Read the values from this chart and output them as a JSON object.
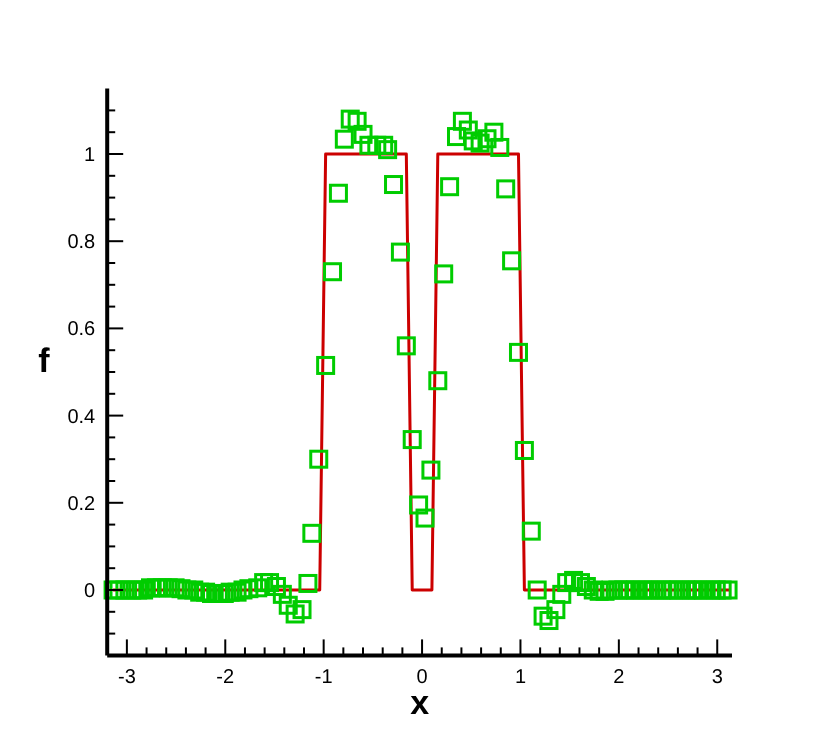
{
  "chart_data": {
    "type": "line",
    "xlabel": "x",
    "ylabel": "f",
    "xlim": [
      -3.2,
      3.15
    ],
    "ylim": [
      -0.15,
      1.15
    ],
    "xticks": [
      -3,
      {
        "value": -2.8,
        "label": null
      },
      {
        "value": -2.6,
        "label": null
      },
      {
        "value": -2.4,
        "label": null
      },
      {
        "value": -2.2,
        "label": null
      },
      -2,
      {
        "value": -1.8,
        "label": null
      },
      {
        "value": -1.6,
        "label": null
      },
      {
        "value": -1.4,
        "label": null
      },
      {
        "value": -1.2,
        "label": null
      },
      -1,
      {
        "value": -0.8,
        "label": null
      },
      {
        "value": -0.6,
        "label": null
      },
      {
        "value": -0.4,
        "label": null
      },
      {
        "value": -0.2,
        "label": null
      },
      0,
      {
        "value": 0.2,
        "label": null
      },
      {
        "value": 0.4,
        "label": null
      },
      {
        "value": 0.6,
        "label": null
      },
      {
        "value": 0.8,
        "label": null
      },
      1,
      {
        "value": 1.2,
        "label": null
      },
      {
        "value": 1.4,
        "label": null
      },
      {
        "value": 1.6,
        "label": null
      },
      {
        "value": 1.8,
        "label": null
      },
      2,
      {
        "value": 2.2,
        "label": null
      },
      {
        "value": 2.4,
        "label": null
      },
      {
        "value": 2.6,
        "label": null
      },
      {
        "value": 2.8,
        "label": null
      },
      3
    ],
    "yticks": [
      {
        "value": -0.1,
        "label": null
      },
      {
        "value": -0.05,
        "label": null
      },
      0,
      {
        "value": 0.05,
        "label": null
      },
      {
        "value": 0.1,
        "label": null
      },
      {
        "value": 0.15,
        "label": null
      },
      0.2,
      {
        "value": 0.25,
        "label": null
      },
      {
        "value": 0.3,
        "label": null
      },
      {
        "value": 0.35,
        "label": null
      },
      0.4,
      {
        "value": 0.45,
        "label": null
      },
      {
        "value": 0.5,
        "label": null
      },
      {
        "value": 0.55,
        "label": null
      },
      0.6,
      {
        "value": 0.65,
        "label": null
      },
      {
        "value": 0.7,
        "label": null
      },
      {
        "value": 0.75,
        "label": null
      },
      0.8,
      {
        "value": 0.85,
        "label": null
      },
      {
        "value": 0.9,
        "label": null
      },
      {
        "value": 0.95,
        "label": null
      },
      1,
      {
        "value": 1.05,
        "label": null
      },
      {
        "value": 1.1,
        "label": null
      }
    ],
    "grid": false,
    "series": [
      {
        "color": "#cc0000",
        "marker": "none",
        "x": [
          -3.14,
          -1.04,
          -0.98,
          -0.16,
          -0.1,
          0.1,
          0.16,
          0.98,
          1.04,
          3.14
        ],
        "values": [
          0,
          0,
          1,
          1,
          0,
          0,
          1,
          1,
          0,
          0
        ]
      },
      {
        "type": "scatter",
        "color": "#00cc00",
        "marker": "square",
        "x": [
          -3.14,
          -3.08,
          -3.02,
          -2.95,
          -2.89,
          -2.83,
          -2.76,
          -2.7,
          -2.64,
          -2.58,
          -2.51,
          -2.45,
          -2.39,
          -2.32,
          -2.26,
          -2.2,
          -2.14,
          -2.07,
          -2.01,
          -1.95,
          -1.88,
          -1.82,
          -1.76,
          -1.67,
          -1.61,
          -1.55,
          -1.48,
          -1.42,
          -1.36,
          -1.29,
          -1.22,
          -1.16,
          -1.12,
          -1.05,
          -0.98,
          -0.91,
          -0.85,
          -0.79,
          -0.73,
          -0.66,
          -0.6,
          -0.54,
          -0.46,
          -0.39,
          -0.35,
          -0.29,
          -0.22,
          -0.16,
          -0.1,
          -0.035,
          0.03,
          0.09,
          0.16,
          0.22,
          0.28,
          0.35,
          0.41,
          0.47,
          0.52,
          0.59,
          0.66,
          0.73,
          0.79,
          0.85,
          0.91,
          0.98,
          1.04,
          1.11,
          1.17,
          1.23,
          1.29,
          1.36,
          1.42,
          1.47,
          1.54,
          1.61,
          1.67,
          1.74,
          1.8,
          1.86,
          1.92,
          1.99,
          2.05,
          2.11,
          2.17,
          2.24,
          2.3,
          2.36,
          2.43,
          2.49,
          2.55,
          2.61,
          2.68,
          2.74,
          2.8,
          2.86,
          2.93,
          2.99,
          3.05,
          3.11
        ],
        "values": [
          0,
          0,
          0,
          0,
          0,
          0,
          0.005,
          0.005,
          0.005,
          0.005,
          0.005,
          0.003,
          0,
          0,
          -0.005,
          -0.005,
          -0.008,
          -0.008,
          -0.008,
          -0.005,
          -0.005,
          0,
          0.003,
          0.005,
          0.017,
          0.017,
          0.008,
          -0.01,
          -0.035,
          -0.055,
          -0.045,
          0.015,
          0.13,
          0.3,
          0.515,
          0.73,
          0.91,
          1.034,
          1.08,
          1.075,
          1.045,
          1.02,
          1.02,
          1.02,
          1.01,
          0.93,
          0.775,
          0.56,
          0.345,
          0.195,
          0.165,
          0.275,
          0.48,
          0.725,
          0.925,
          1.04,
          1.075,
          1.055,
          1.03,
          1.025,
          1.035,
          1.05,
          1.015,
          0.92,
          0.755,
          0.545,
          0.32,
          0.135,
          0,
          -0.06,
          -0.07,
          -0.045,
          -0.01,
          0.017,
          0.022,
          0.017,
          0.008,
          0,
          -0.003,
          -0.003,
          0,
          0,
          0,
          0,
          0,
          0,
          0,
          0,
          0,
          0,
          0,
          0,
          0,
          0,
          0,
          0,
          0,
          0,
          0,
          0
        ]
      }
    ]
  }
}
